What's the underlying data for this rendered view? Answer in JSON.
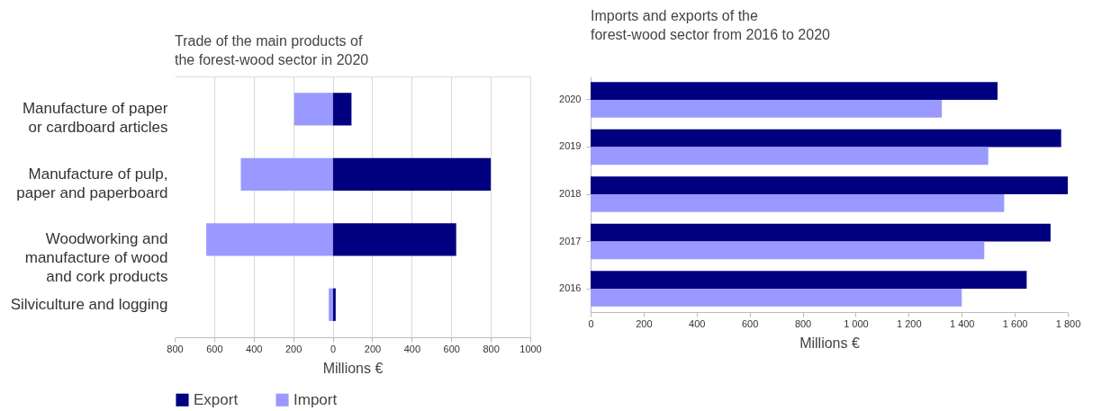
{
  "chart_data": [
    {
      "type": "bar",
      "title": "Trade of the main products of the forest-wood sector in 2020",
      "xlabel": "Millions €",
      "orientation": "horizontal",
      "stacked": true,
      "grid": "x",
      "legend": "bottom",
      "categories": [
        "Manufacture of paper or cardboard articles",
        "Manufacture of pulp, paper and paperboard",
        "Woodworking and manufacture of wood and cork products",
        "Silviculture and logging"
      ],
      "series": [
        {
          "name": "Export",
          "color": "#000080",
          "values": [
            95,
            800,
            625,
            15
          ]
        },
        {
          "name": "Import",
          "color": "#9999ff",
          "values": [
            -195,
            -465,
            -640,
            -20
          ]
        }
      ],
      "xlim": [
        -800,
        1000
      ],
      "xticks": [
        {
          "value": -800,
          "label": "800"
        },
        {
          "value": -600,
          "label": "600"
        },
        {
          "value": -400,
          "label": "400"
        },
        {
          "value": -200,
          "label": "200"
        },
        0,
        200,
        400,
        600,
        800,
        1000
      ]
    },
    {
      "type": "bar",
      "title": "Imports and exports of the forest-wood sector from 2016 to 2020",
      "xlabel": "Millions €",
      "orientation": "horizontal",
      "legend": "bottom",
      "categories": [
        "2020",
        "2019",
        "2018",
        "2017",
        "2016"
      ],
      "series": [
        {
          "name": "Export",
          "color": "#000080",
          "values": [
            1535,
            1775,
            1800,
            1735,
            1645
          ]
        },
        {
          "name": "Import",
          "color": "#9999ff",
          "values": [
            1325,
            1500,
            1560,
            1485,
            1400
          ]
        }
      ],
      "xlim": [
        0,
        1800
      ],
      "xticks": [
        0,
        200,
        400,
        600,
        800,
        {
          "value": 1000,
          "label": "1 000"
        },
        {
          "value": 1200,
          "label": "1 200"
        },
        {
          "value": 1400,
          "label": "1 400"
        },
        {
          "value": 1600,
          "label": "1 600"
        },
        {
          "value": 1800,
          "label": "1 800"
        }
      ]
    }
  ]
}
